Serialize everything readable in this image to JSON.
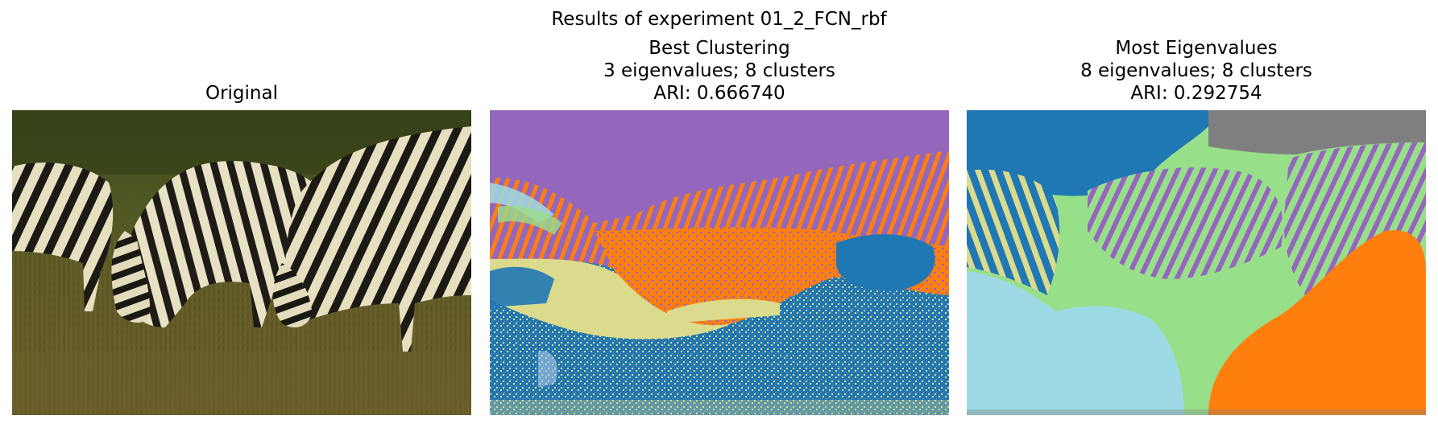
{
  "figure": {
    "suptitle": "Results of experiment 01_2_FCN_rbf"
  },
  "panels": [
    {
      "lines": [
        "Original"
      ],
      "image": "photo of three grazing zebras on grassland"
    },
    {
      "lines": [
        "Best Clustering",
        "3 eigenvalues; 8 clusters",
        "ARI: 0.666740"
      ],
      "image": "segmentation map, 8 cluster colors"
    },
    {
      "lines": [
        "Most Eigenvalues",
        "8 eigenvalues; 8 clusters",
        "ARI: 0.292754"
      ],
      "image": "segmentation map, 8 cluster colors"
    }
  ],
  "colors": {
    "cluster_blue": "#1f77b4",
    "cluster_orange": "#ff7f0e",
    "cluster_purple": "#9467bd",
    "cluster_khaki": "#dbdb8d",
    "cluster_light_green": "#98df8a",
    "cluster_light_cyan": "#9edae5",
    "cluster_gray": "#7f7f7f",
    "cluster_pale_blue": "#aec7e8"
  }
}
